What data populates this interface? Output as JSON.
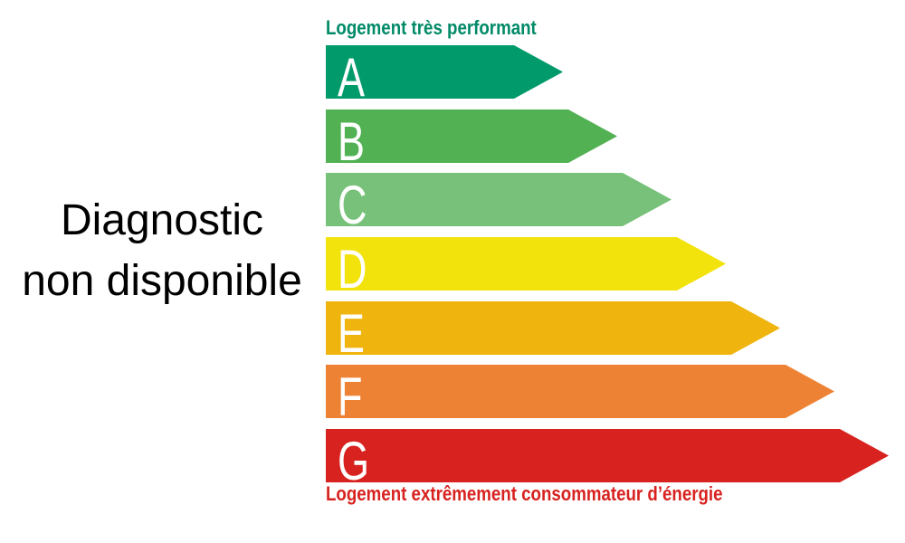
{
  "note": {
    "line1": "Diagnostic",
    "line2": "non disponible"
  },
  "scale": {
    "top_label": "Logement très performant",
    "top_label_color": "#008a67",
    "bottom_label": "Logement extrêmement consommateur d’énergie",
    "bottom_label_color": "#d7221f",
    "letter_color": "#ffffff",
    "bars": [
      {
        "grade": "A",
        "color": "#009a6b",
        "length": 262
      },
      {
        "grade": "B",
        "color": "#52b153",
        "length": 322
      },
      {
        "grade": "C",
        "color": "#78c17a",
        "length": 382
      },
      {
        "grade": "D",
        "color": "#f2e30d",
        "length": 442
      },
      {
        "grade": "E",
        "color": "#efb40d",
        "length": 502
      },
      {
        "grade": "F",
        "color": "#ee8234",
        "length": 562
      },
      {
        "grade": "G",
        "color": "#d7221f",
        "length": 622
      }
    ]
  },
  "chart_data": {
    "type": "bar",
    "orientation": "horizontal",
    "title": "Diagnostic non disponible",
    "categories": [
      "A",
      "B",
      "C",
      "D",
      "E",
      "F",
      "G"
    ],
    "values": [
      262,
      322,
      382,
      442,
      502,
      562,
      622
    ],
    "value_unit": "bar length in px (relative energy-class scale, no numeric axis shown)",
    "colors": [
      "#009a6b",
      "#52b153",
      "#78c17a",
      "#f2e30d",
      "#efb40d",
      "#ee8234",
      "#d7221f"
    ],
    "annotations": [
      "Logement très performant",
      "Logement extrêmement consommateur d’énergie"
    ],
    "legend": "none",
    "axes": "none",
    "grid": false
  }
}
